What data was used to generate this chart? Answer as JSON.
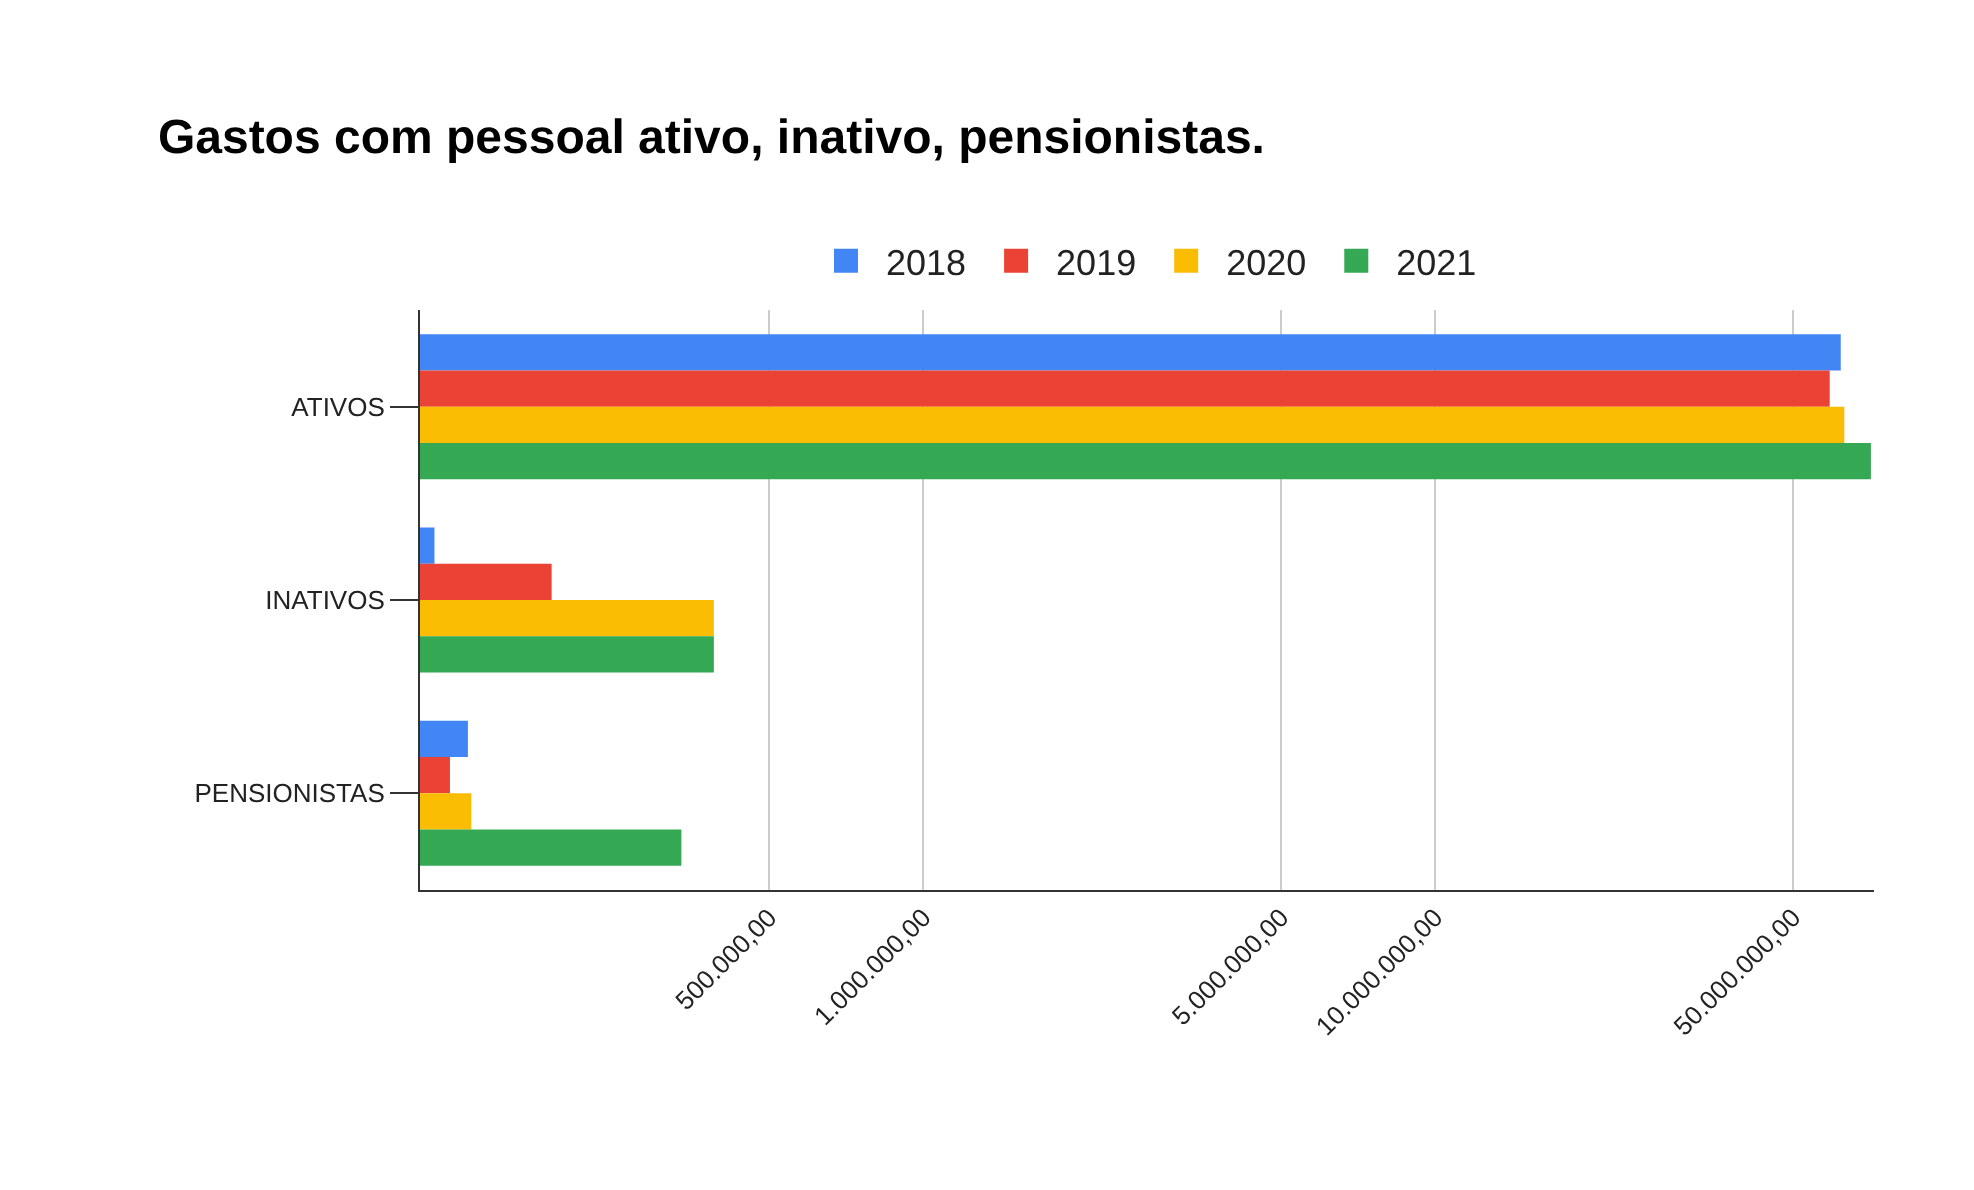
{
  "chart_data": {
    "type": "bar",
    "orientation": "horizontal",
    "title": "Gastos com pessoal ativo, inativo, pensionistas.",
    "categories": [
      "ATIVOS",
      "INATIVOS",
      "PENSIONISTAS"
    ],
    "series": [
      {
        "name": "2018",
        "color": "#4285f4",
        "values": [
          62000000,
          111000,
          129000
        ]
      },
      {
        "name": "2019",
        "color": "#ea4335",
        "values": [
          59000000,
          188000,
          119000
        ]
      },
      {
        "name": "2020",
        "color": "#fbbc04",
        "values": [
          63000000,
          390000,
          131000
        ]
      },
      {
        "name": "2021",
        "color": "#34a853",
        "values": [
          71000000,
          390000,
          337000
        ]
      }
    ],
    "log": "x",
    "xlim": [
      104000,
      72000000
    ],
    "xticks": [
      {
        "value": 500000,
        "label": "500.000,00"
      },
      {
        "value": 1000000,
        "label": "1.000.000,00"
      },
      {
        "value": 5000000,
        "label": "5.000.000,00"
      },
      {
        "value": 10000000,
        "label": "10.000.000,00"
      },
      {
        "value": 50000000,
        "label": "50.000.000,00"
      }
    ],
    "grid": "x",
    "legend": "top"
  }
}
